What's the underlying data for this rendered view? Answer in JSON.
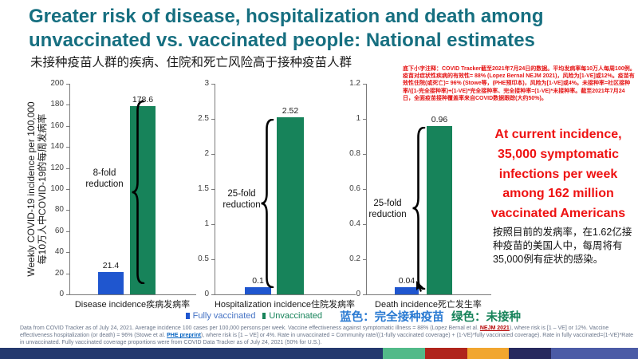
{
  "slide": {
    "title_lines": [
      "Greater risk of disease, hospitalization and death among",
      "unvaccinated vs. vaccinated people: National estimates"
    ],
    "subtitle_zh": "未接种疫苗人群的疾病、住院和死亡风险高于接种疫苗人群"
  },
  "top_note_zh": "底下小字注释：COVID Tracker截至2021年7月24日的数据。平均发病率每10万人每周100例。疫苗对症状性疾病的有效性= 88% (Lopez Bernal NEJM 2021)，风险为[1-VE]或12%。疫苗有效性住院(或死亡)= 96% (Stowe等，(PHE预印本)，风险为[1-VE]或4%。未接种率=社区接种率/((1-完全接种率)+(1-VE)*完全接种率、完全接种率=(1-VE)*未接种率。截至2021年7月24日，全面疫苗接种覆盖率来自COVID数据跟踪(大约50%)。",
  "callout": {
    "text_en": "At current incidence, 35,000 symptomatic infections per week among 162 million vaccinated Americans",
    "text_zh": "按照目前的发病率，在1.62亿接种疫苗的美国人中，每周将有35,000例有症状的感染。"
  },
  "legend": {
    "fully_vaccinated": "Fully vaccinated",
    "unvaccinated": "Unvaccinated",
    "zh_blue": "蓝色：完全接种疫苗",
    "zh_green": "绿色：未接种"
  },
  "colors": {
    "vaccinated_blue": "#1f56cf",
    "unvaccinated_green": "#17835a",
    "title_teal": "#166f80",
    "callout_red": "#ee1111"
  },
  "chart_data": [
    {
      "type": "bar",
      "name": "disease-incidence",
      "xlabel": "Disease incidence疾病发病率",
      "ylabel_lines": [
        "Weekly COVID-19 incidence per 100,000",
        "每10万人中COVID-19的每周发病率"
      ],
      "categories": [
        "Fully vaccinated",
        "Unvaccinated"
      ],
      "values": [
        21.4,
        178.6
      ],
      "value_labels": [
        "21.4",
        "178.6"
      ],
      "ylim": [
        0,
        200
      ],
      "yticks": [
        "0",
        "20",
        "40",
        "60",
        "80",
        "100",
        "120",
        "140",
        "160",
        "180",
        "200"
      ],
      "annotation": "8-fold reduction"
    },
    {
      "type": "bar",
      "name": "hospitalization-incidence",
      "xlabel": "Hospitalization incidence住院发病率",
      "categories": [
        "Fully vaccinated",
        "Unvaccinated"
      ],
      "values": [
        0.1,
        2.52
      ],
      "value_labels": [
        "0.1",
        "2.52"
      ],
      "ylim": [
        0,
        3
      ],
      "yticks": [
        "0",
        "0.5",
        "1",
        "1.5",
        "2",
        "2.5",
        "3"
      ],
      "annotation": "25-fold reduction"
    },
    {
      "type": "bar",
      "name": "death-incidence",
      "xlabel": "Death incidence死亡发生率",
      "categories": [
        "Fully vaccinated",
        "Unvaccinated"
      ],
      "values": [
        0.04,
        0.96
      ],
      "value_labels": [
        "0.04",
        "0.96"
      ],
      "ylim": [
        0,
        1.2
      ],
      "yticks": [
        "0",
        "0.2",
        "0.4",
        "0.6",
        "0.8",
        "1",
        "1.2"
      ],
      "annotation": "25-fold reduction"
    }
  ],
  "footnote": {
    "part1": "Data from COVID Tracker as of July 24, 2021. Average incidence 100 cases per 100,000 persons per week. Vaccine effectiveness against symptomatic illness = 88% (Lopez Bernal et al. ",
    "link1": "NEJM 2021",
    "part2": "), where risk is [1 – VE] or 12%. Vaccine effectiveness hospitalization (or death) = 96% (Stowe et al. ",
    "link2": "PHE preprint",
    "part3": "), where risk is [1 – VE] or 4%. Rate in unvaccinated = Community rate/((1-fully vaccinated coverage) + (1-VE)*fully vaccinated coverage). Rate in fully vaccinated=(1-VE)*Rate in unvaccinated. Fully vaccinated coverage proportions were from COVID Data Tracker as of July 24, 2021 (50% for U.S.)."
  },
  "bottom_bar_colors": [
    "#24396e",
    "#52ba89",
    "#b0241c",
    "#f1a62f",
    "#27295e",
    "#4b5ba6"
  ]
}
